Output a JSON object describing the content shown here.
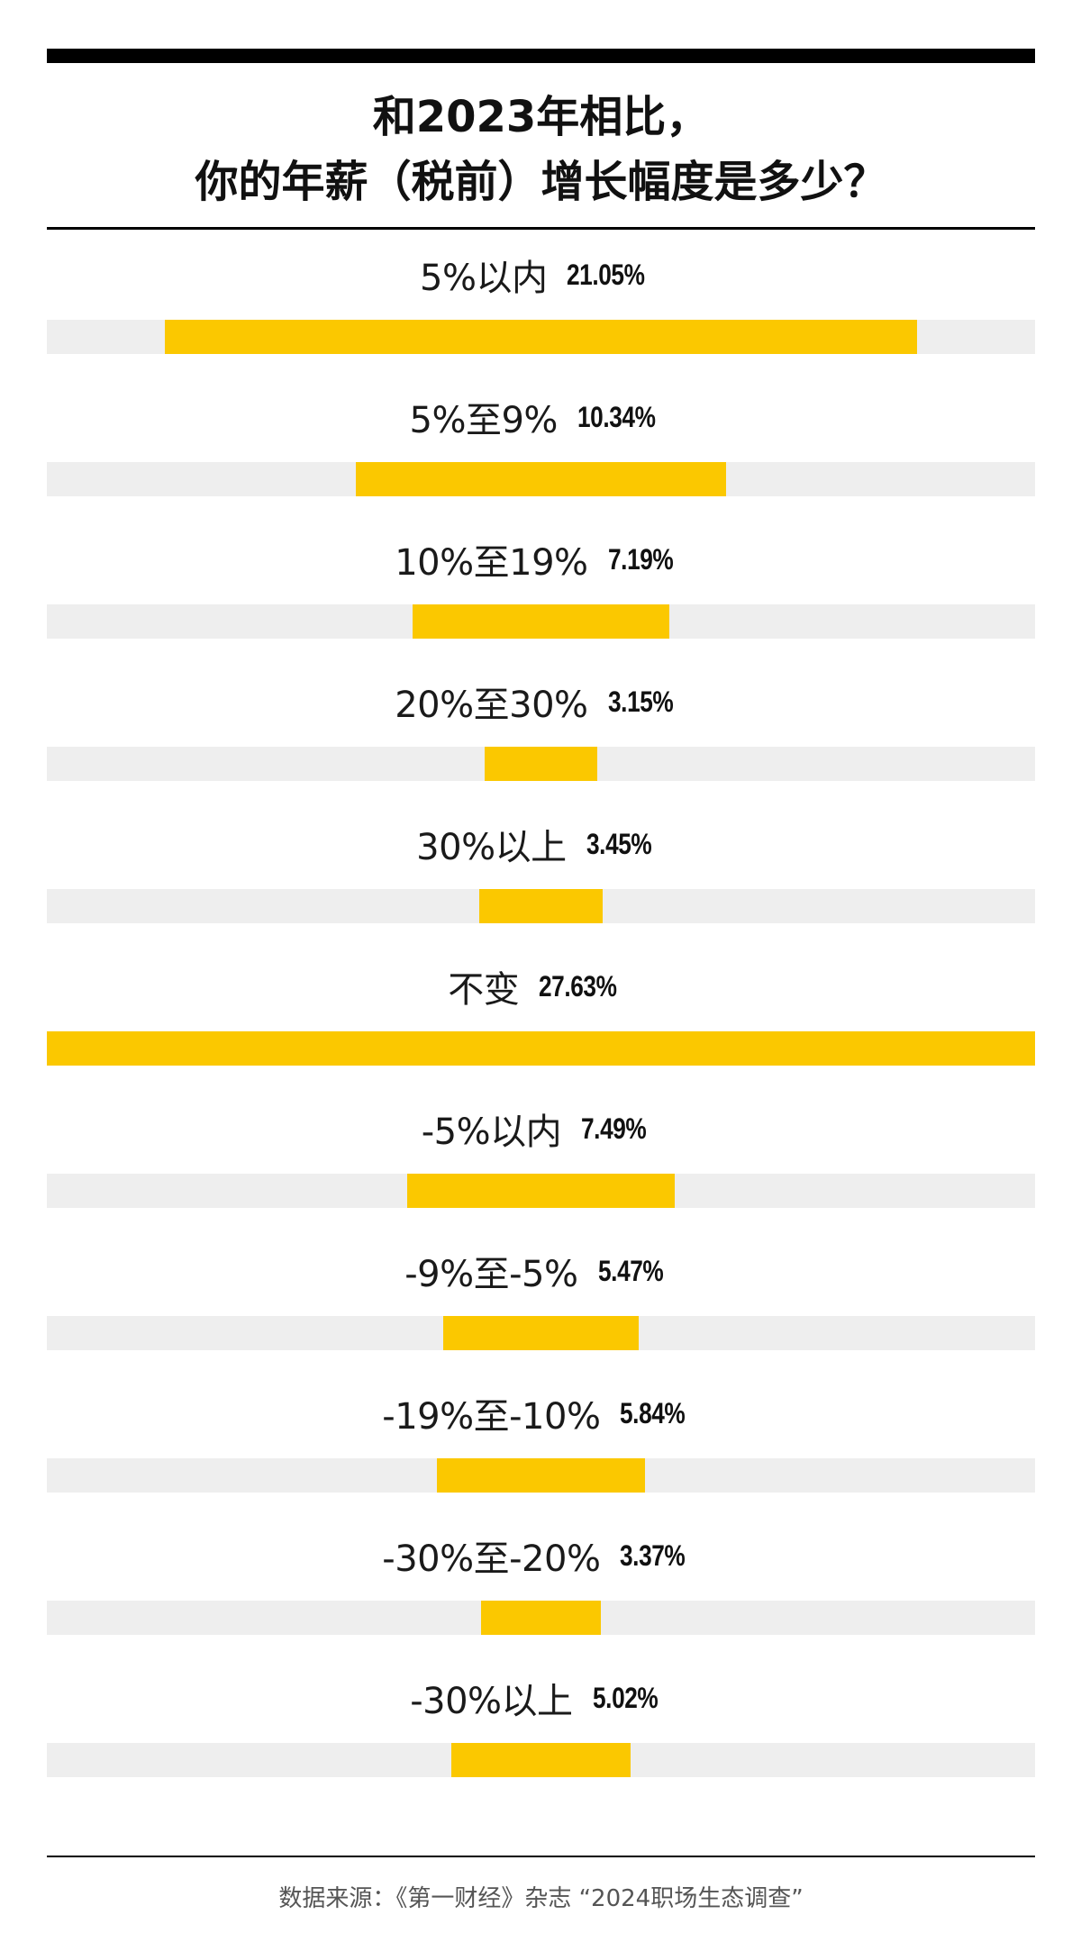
{
  "chart_data": {
    "type": "bar",
    "title_lines": [
      "和2023年相比，",
      "你的年薪（税前）增长幅度是多少？"
    ],
    "categories": [
      "5%以内",
      "5%至9%",
      "10%至19%",
      "20%至30%",
      "30%以上",
      "不变",
      "-5%以内",
      "-9%至-5%",
      "-19%至-10%",
      "-30%至-20%",
      "-30%以上"
    ],
    "values": [
      21.05,
      10.34,
      7.19,
      3.15,
      3.45,
      27.63,
      7.49,
      5.47,
      5.84,
      3.37,
      5.02
    ],
    "value_labels": [
      "21.05%",
      "10.34%",
      "7.19%",
      "3.15%",
      "3.45%",
      "27.63%",
      "7.49%",
      "5.47%",
      "5.84%",
      "3.37%",
      "5.02%"
    ],
    "bar_alignment": "centered",
    "xlim": [
      0,
      27.63
    ],
    "grid": false,
    "colors": {
      "bar": "#fbc800",
      "track": "#eeeeee",
      "rule": "#000000"
    }
  },
  "source": "数据来源：《第一财经》杂志 “2024职场生态调查”"
}
